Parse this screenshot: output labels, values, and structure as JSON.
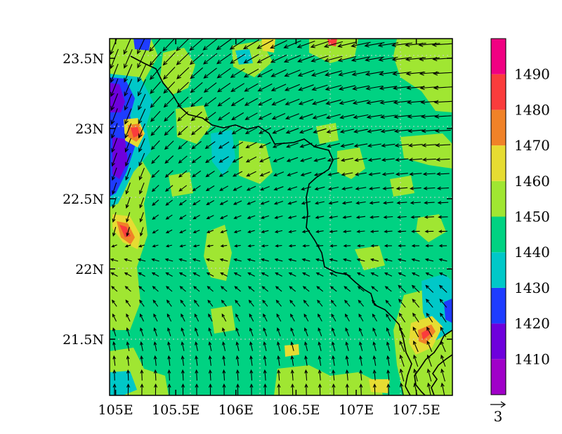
{
  "map": {
    "lon_range": [
      104.95,
      107.8
    ],
    "lat_range": [
      21.1,
      23.64
    ],
    "lon_ticks": [
      {
        "value": 105.0,
        "label": "105E"
      },
      {
        "value": 105.5,
        "label": "105.5E"
      },
      {
        "value": 106.0,
        "label": "106E"
      },
      {
        "value": 106.5,
        "label": "106.5E"
      },
      {
        "value": 107.0,
        "label": "107E"
      },
      {
        "value": 107.5,
        "label": "107.5E"
      }
    ],
    "lat_ticks": [
      {
        "value": 21.5,
        "label": "21.5N"
      },
      {
        "value": 22.0,
        "label": "22N"
      },
      {
        "value": 22.5,
        "label": "22.5N"
      },
      {
        "value": 23.0,
        "label": "23N"
      },
      {
        "value": 23.5,
        "label": "23.5N"
      }
    ],
    "grid": true,
    "vector_reference": {
      "label": "3"
    }
  },
  "colorbar": {
    "placement": "right",
    "levels": [
      1400,
      1410,
      1420,
      1430,
      1440,
      1450,
      1460,
      1470,
      1480,
      1490,
      1500
    ],
    "labels": [
      "1410",
      "1420",
      "1430",
      "1440",
      "1450",
      "1460",
      "1470",
      "1480",
      "1490"
    ],
    "colors": [
      "#a000c8",
      "#6e00dc",
      "#1e3cff",
      "#00c8c8",
      "#00d282",
      "#a0e632",
      "#e6dc32",
      "#f08228",
      "#fa3c3c",
      "#f00082"
    ]
  }
}
